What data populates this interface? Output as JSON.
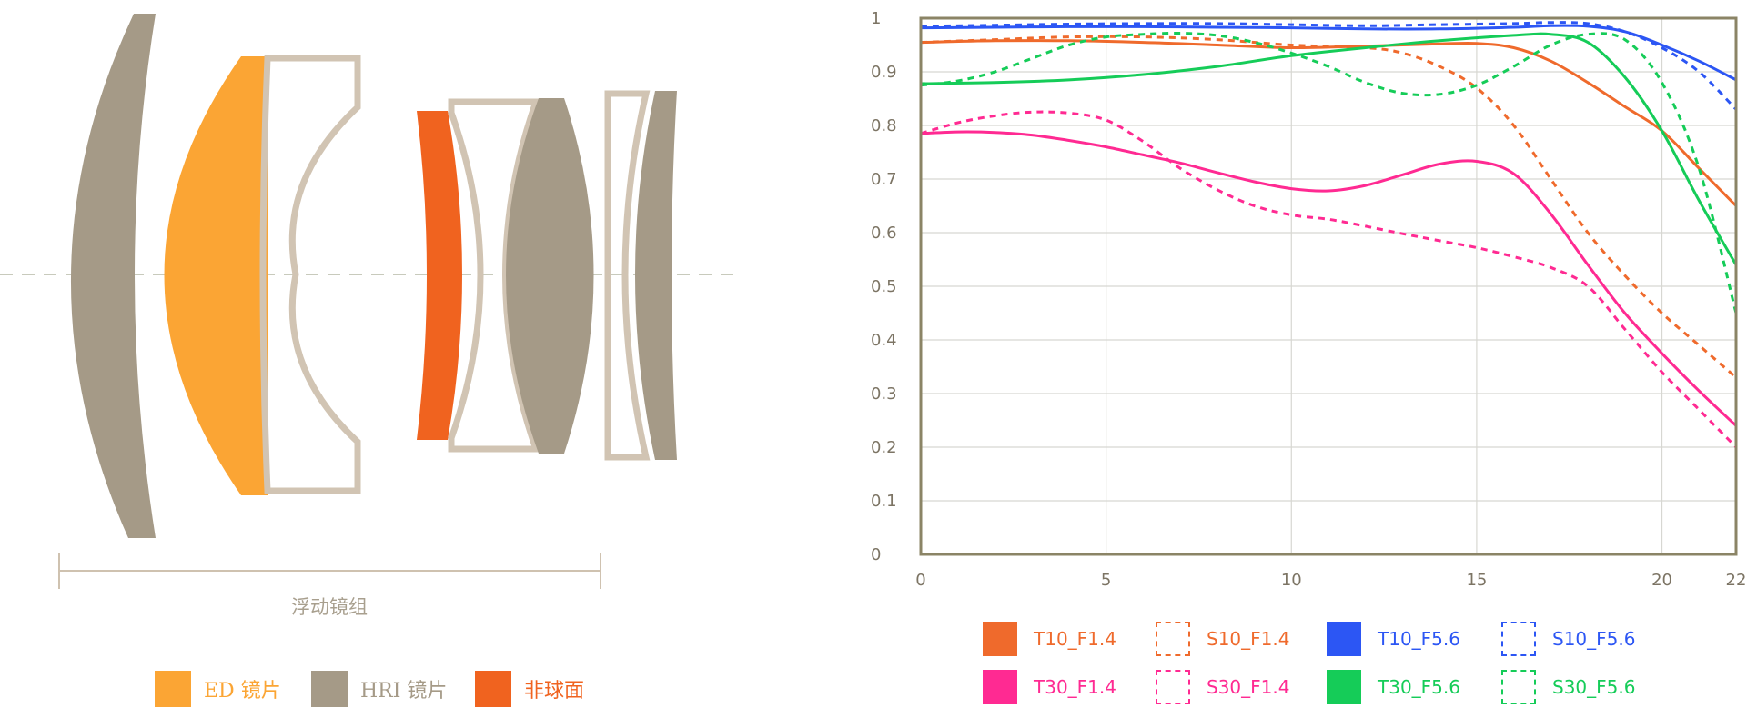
{
  "lens_diagram": {
    "group_label": "浮动镜组",
    "legend": [
      {
        "id": "ed",
        "label": "ED 镜片",
        "color": "#fba534"
      },
      {
        "id": "hri",
        "label": "HRI 镜片",
        "color": "#a59a87"
      },
      {
        "id": "asp",
        "label": "非球面",
        "color": "#f0631f"
      }
    ],
    "colors": {
      "outline": "#d1c4b3",
      "axis": "#b6b8a6",
      "bracket": "#cfc2b0"
    }
  },
  "chart_data": {
    "type": "line",
    "xlim": [
      0,
      22
    ],
    "ylim": [
      0,
      1
    ],
    "x_ticks": [
      "0",
      "5",
      "10",
      "15",
      "20",
      "22"
    ],
    "y_ticks": [
      "0",
      "0.1",
      "0.2",
      "0.3",
      "0.4",
      "0.5",
      "0.6",
      "0.7",
      "0.8",
      "0.9",
      "1"
    ],
    "grid": true,
    "legend_position": "bottom",
    "axis_color": "#8b8466",
    "grid_color": "#d7d7d2",
    "series": [
      {
        "name": "T10_F1.4",
        "color": "#ef6a2c",
        "dashed": false,
        "x": [
          0,
          2,
          4,
          6,
          8,
          10,
          12,
          14,
          15,
          16,
          17,
          18,
          19,
          20,
          21,
          22
        ],
        "y": [
          0.955,
          0.958,
          0.958,
          0.955,
          0.95,
          0.945,
          0.948,
          0.952,
          0.953,
          0.945,
          0.92,
          0.88,
          0.835,
          0.79,
          0.72,
          0.65
        ]
      },
      {
        "name": "S10_F1.4",
        "color": "#ef6a2c",
        "dashed": true,
        "x": [
          0,
          2,
          4,
          6,
          8,
          10,
          12,
          13,
          14,
          15,
          16,
          17,
          18,
          19,
          20,
          21,
          22
        ],
        "y": [
          0.955,
          0.96,
          0.965,
          0.965,
          0.96,
          0.95,
          0.945,
          0.935,
          0.91,
          0.87,
          0.8,
          0.7,
          0.6,
          0.52,
          0.45,
          0.39,
          0.33
        ]
      },
      {
        "name": "T10_F5.6",
        "color": "#2c56f4",
        "dashed": false,
        "x": [
          0,
          2,
          4,
          6,
          8,
          10,
          12,
          14,
          16,
          17,
          18,
          19,
          20,
          21,
          22
        ],
        "y": [
          0.982,
          0.983,
          0.984,
          0.984,
          0.983,
          0.982,
          0.98,
          0.98,
          0.983,
          0.986,
          0.985,
          0.975,
          0.95,
          0.92,
          0.885
        ]
      },
      {
        "name": "S10_F5.6",
        "color": "#2c56f4",
        "dashed": true,
        "x": [
          0,
          2,
          4,
          6,
          8,
          10,
          12,
          14,
          16,
          17,
          18,
          19,
          20,
          21,
          22
        ],
        "y": [
          0.985,
          0.987,
          0.989,
          0.99,
          0.99,
          0.988,
          0.986,
          0.988,
          0.99,
          0.992,
          0.99,
          0.975,
          0.945,
          0.9,
          0.83
        ]
      },
      {
        "name": "T30_F1.4",
        "color": "#ff2a92",
        "dashed": false,
        "x": [
          0,
          1,
          2,
          3,
          4,
          5,
          6,
          7,
          8,
          9,
          10,
          11,
          12,
          13,
          14,
          15,
          16,
          17,
          18,
          19,
          20,
          21,
          22
        ],
        "y": [
          0.785,
          0.788,
          0.787,
          0.782,
          0.772,
          0.76,
          0.745,
          0.73,
          0.712,
          0.695,
          0.682,
          0.678,
          0.688,
          0.708,
          0.728,
          0.733,
          0.71,
          0.635,
          0.54,
          0.45,
          0.375,
          0.305,
          0.24
        ]
      },
      {
        "name": "S30_F1.4",
        "color": "#ff2a92",
        "dashed": true,
        "x": [
          0,
          1,
          2,
          3,
          4,
          5,
          6,
          7,
          8,
          9,
          10,
          11,
          12,
          13,
          14,
          15,
          16,
          17,
          18,
          19,
          20,
          21,
          22
        ],
        "y": [
          0.785,
          0.805,
          0.818,
          0.825,
          0.823,
          0.81,
          0.77,
          0.72,
          0.68,
          0.65,
          0.633,
          0.625,
          0.612,
          0.598,
          0.585,
          0.572,
          0.555,
          0.535,
          0.5,
          0.42,
          0.34,
          0.27,
          0.2
        ]
      },
      {
        "name": "T30_F5.6",
        "color": "#15cc58",
        "dashed": false,
        "x": [
          0,
          2,
          4,
          6,
          8,
          10,
          12,
          14,
          16,
          17,
          18,
          19,
          20,
          21,
          22
        ],
        "y": [
          0.878,
          0.88,
          0.885,
          0.895,
          0.91,
          0.93,
          0.945,
          0.958,
          0.968,
          0.97,
          0.955,
          0.89,
          0.79,
          0.66,
          0.54
        ]
      },
      {
        "name": "S30_F5.6",
        "color": "#15cc58",
        "dashed": true,
        "x": [
          0,
          1,
          2,
          3,
          4,
          5,
          6,
          7,
          8,
          9,
          10,
          11,
          12,
          13,
          14,
          15,
          16,
          17,
          18,
          19,
          20,
          21,
          22
        ],
        "y": [
          0.875,
          0.883,
          0.9,
          0.925,
          0.95,
          0.965,
          0.97,
          0.972,
          0.968,
          0.955,
          0.935,
          0.91,
          0.88,
          0.86,
          0.858,
          0.875,
          0.91,
          0.95,
          0.97,
          0.96,
          0.88,
          0.72,
          0.45
        ]
      }
    ]
  }
}
